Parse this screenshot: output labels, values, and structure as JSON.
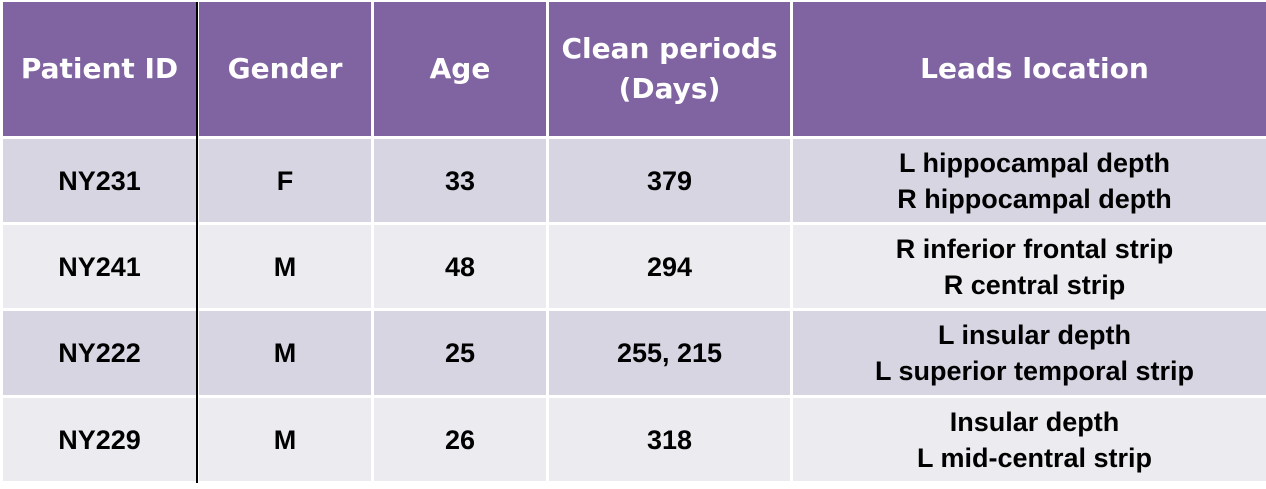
{
  "table": {
    "headers": {
      "patient_id": "Patient ID",
      "gender": "Gender",
      "age": "Age",
      "clean_periods_line1": "Clean periods",
      "clean_periods_line2": "(Days)",
      "leads_location": "Leads location"
    },
    "rows": [
      {
        "patient_id": "NY231",
        "gender": "F",
        "age": "33",
        "clean_periods": "379",
        "leads": [
          "L hippocampal depth",
          "R hippocampal depth"
        ]
      },
      {
        "patient_id": "NY241",
        "gender": "M",
        "age": "48",
        "clean_periods": "294",
        "leads": [
          "R inferior frontal strip",
          "R central strip"
        ]
      },
      {
        "patient_id": "NY222",
        "gender": "M",
        "age": "25",
        "clean_periods": "255, 215",
        "leads": [
          "L insular depth",
          "L superior temporal strip"
        ]
      },
      {
        "patient_id": "NY229",
        "gender": "M",
        "age": "26",
        "clean_periods": "318",
        "leads": [
          "Insular depth",
          "L mid-central strip"
        ]
      }
    ],
    "colors": {
      "header_bg": "#8064a2",
      "header_text": "#ffffff",
      "row_band_dark": "#d8d5e2",
      "row_band_light": "#ecebf0",
      "divider": "#000000"
    }
  }
}
